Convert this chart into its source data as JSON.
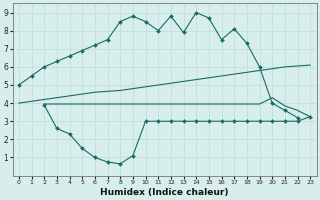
{
  "line1_x": [
    0,
    1,
    2,
    3,
    4,
    5,
    6,
    7,
    8,
    9,
    10,
    11,
    12,
    13,
    14,
    15,
    16,
    17,
    18,
    19,
    20,
    21,
    22
  ],
  "line1_y": [
    5.0,
    5.5,
    6.0,
    6.3,
    6.6,
    6.9,
    7.2,
    7.5,
    8.5,
    8.8,
    8.5,
    8.0,
    8.8,
    7.9,
    9.0,
    8.7,
    7.5,
    8.1,
    7.3,
    6.0,
    4.0,
    3.6,
    3.2
  ],
  "line2_x": [
    0,
    1,
    2,
    3,
    4,
    5,
    6,
    7,
    8,
    9,
    10,
    11,
    12,
    13,
    14,
    15,
    16,
    17,
    18,
    19,
    20,
    21,
    22,
    23
  ],
  "line2_y": [
    4.0,
    4.1,
    4.2,
    4.3,
    4.4,
    4.5,
    4.6,
    4.65,
    4.7,
    4.8,
    4.9,
    5.0,
    5.1,
    5.2,
    5.3,
    5.4,
    5.5,
    5.6,
    5.7,
    5.8,
    5.9,
    6.0,
    6.05,
    6.1
  ],
  "line3_x": [
    2,
    3,
    4,
    5,
    6,
    7,
    8,
    9,
    10,
    11,
    12,
    13,
    14,
    15,
    16,
    17,
    18,
    19,
    20,
    21,
    22,
    23
  ],
  "line3_y": [
    3.95,
    3.95,
    3.95,
    3.95,
    3.95,
    3.95,
    3.95,
    3.95,
    3.95,
    3.95,
    3.95,
    3.95,
    3.95,
    3.95,
    3.95,
    3.95,
    3.95,
    3.95,
    4.3,
    3.85,
    3.6,
    3.25
  ],
  "line4_x": [
    2,
    3,
    4,
    5,
    6,
    7,
    8,
    9,
    10,
    11,
    12,
    13,
    14,
    15,
    16,
    17,
    18,
    19,
    20,
    21,
    22,
    23
  ],
  "line4_y": [
    3.9,
    2.6,
    2.3,
    1.5,
    1.0,
    0.75,
    0.65,
    1.1,
    3.0,
    3.0,
    3.0,
    3.0,
    3.0,
    3.0,
    3.0,
    3.0,
    3.0,
    3.0,
    3.0,
    3.0,
    3.0,
    3.25
  ],
  "line_color": "#1a6b60",
  "bg_color": "#d8eeec",
  "grid_color": "#b8ddd9",
  "xlabel": "Humidex (Indice chaleur)",
  "ylim": [
    0,
    9.5
  ],
  "xlim": [
    -0.5,
    23.5
  ],
  "yticks": [
    1,
    2,
    3,
    4,
    5,
    6,
    7,
    8,
    9
  ],
  "xticks": [
    0,
    1,
    2,
    3,
    4,
    5,
    6,
    7,
    8,
    9,
    10,
    11,
    12,
    13,
    14,
    15,
    16,
    17,
    18,
    19,
    20,
    21,
    22,
    23
  ]
}
